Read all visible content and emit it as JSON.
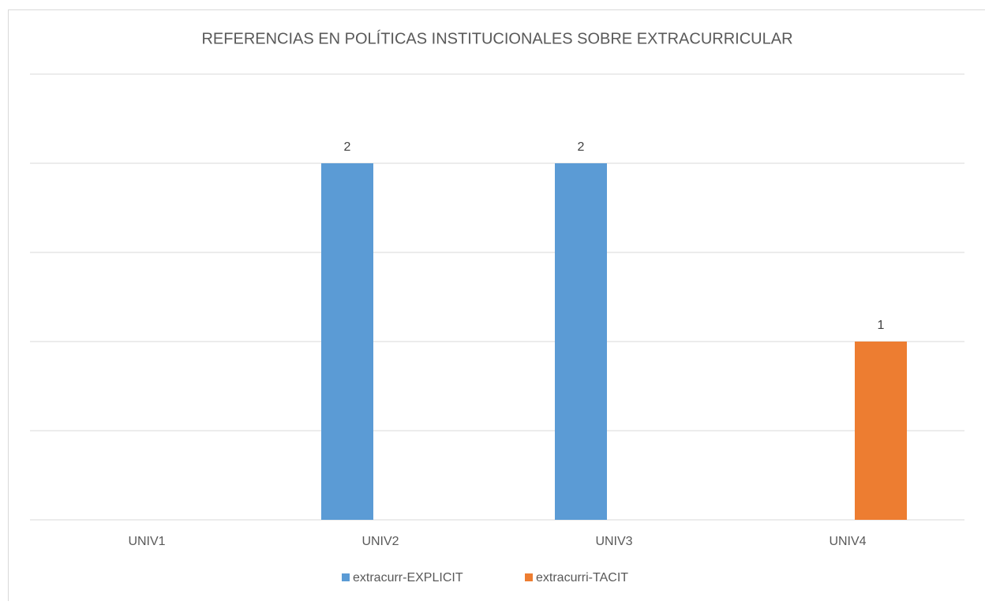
{
  "chart_data": {
    "type": "bar",
    "title": "REFERENCIAS EN POLÍTICAS INSTITUCIONALES SOBRE EXTRACURRICULAR",
    "categories": [
      "UNIV1",
      "UNIV2",
      "UNIV3",
      "UNIV4"
    ],
    "series": [
      {
        "name": "extracurr-EXPLICIT",
        "color": "#5b9bd5",
        "values": [
          null,
          2,
          2,
          null
        ]
      },
      {
        "name": "extracurri-TACIT",
        "color": "#ed7d31",
        "values": [
          null,
          null,
          null,
          1
        ]
      }
    ],
    "ylim": [
      0,
      2.5
    ],
    "yticks": [
      0,
      0.5,
      1,
      1.5,
      2,
      2.5
    ],
    "grid": true,
    "legend": "bottom"
  }
}
